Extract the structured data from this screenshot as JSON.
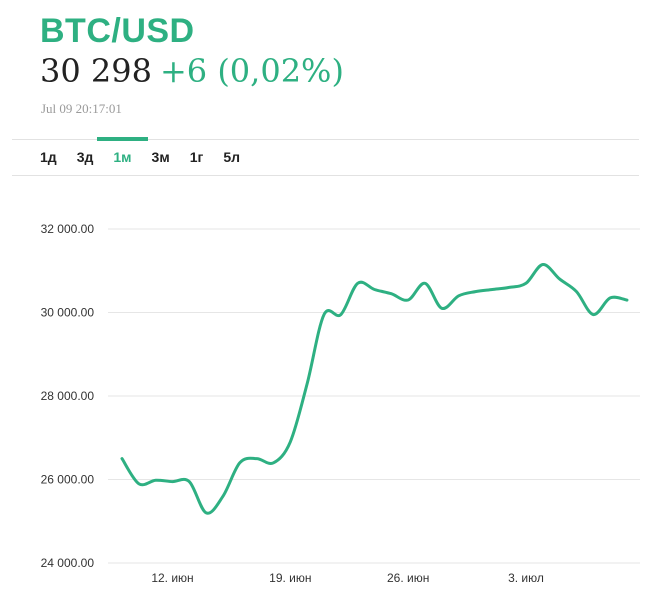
{
  "header": {
    "symbol": "BTC/USD",
    "price": "30 298",
    "change": "+6 (0,02%)",
    "timestamp": "Jul 09 20:17:01"
  },
  "tabs": [
    {
      "label": "1д",
      "active": false
    },
    {
      "label": "3д",
      "active": false
    },
    {
      "label": "1м",
      "active": true
    },
    {
      "label": "3м",
      "active": false
    },
    {
      "label": "1г",
      "active": false
    },
    {
      "label": "5л",
      "active": false
    }
  ],
  "colors": {
    "accent": "#2eb082",
    "grid": "#e6e6e6",
    "text": "#222222",
    "muted": "#9a9a9a"
  },
  "chart_data": {
    "type": "line",
    "title": "",
    "xlabel": "",
    "ylabel": "",
    "ylim": [
      24000,
      32000
    ],
    "yticks": [
      24000,
      26000,
      28000,
      30000,
      32000
    ],
    "ytick_labels": [
      "24 000.00",
      "26 000.00",
      "28 000.00",
      "30 000.00",
      "32 000.00"
    ],
    "xticks": [
      "2023-06-12",
      "2023-06-19",
      "2023-06-26",
      "2023-07-03"
    ],
    "xtick_labels": [
      "12. июн",
      "19. июн",
      "26. июн",
      "3. июл"
    ],
    "grid": true,
    "series": [
      {
        "x": [
          "2023-06-09",
          "2023-06-10",
          "2023-06-11",
          "2023-06-12",
          "2023-06-13",
          "2023-06-14",
          "2023-06-15",
          "2023-06-16",
          "2023-06-17",
          "2023-06-18",
          "2023-06-19",
          "2023-06-20",
          "2023-06-21",
          "2023-06-22",
          "2023-06-23",
          "2023-06-24",
          "2023-06-25",
          "2023-06-26",
          "2023-06-27",
          "2023-06-28",
          "2023-06-29",
          "2023-06-30",
          "2023-07-01",
          "2023-07-02",
          "2023-07-03",
          "2023-07-04",
          "2023-07-05",
          "2023-07-06",
          "2023-07-07",
          "2023-07-08",
          "2023-07-09"
        ],
        "y": [
          26500,
          25900,
          25980,
          25950,
          25950,
          25200,
          25600,
          26400,
          26500,
          26400,
          26900,
          28300,
          29950,
          29950,
          30700,
          30550,
          30450,
          30300,
          30700,
          30100,
          30400,
          30500,
          30550,
          30600,
          30700,
          31150,
          30800,
          30500,
          29950,
          30350,
          30298
        ]
      }
    ]
  }
}
